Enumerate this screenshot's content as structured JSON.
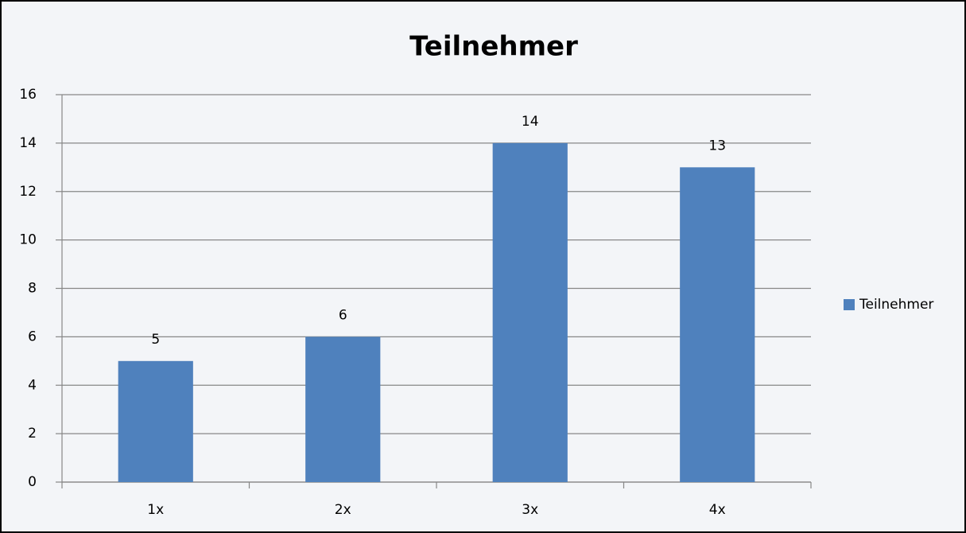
{
  "chart_data": {
    "type": "bar",
    "title": "Teilnehmer",
    "categories": [
      "1x",
      "2x",
      "3x",
      "4x"
    ],
    "series": [
      {
        "name": "Teilnehmer",
        "color": "#4f81bd",
        "values": [
          5,
          6,
          14,
          13
        ]
      }
    ],
    "ylim": [
      0,
      16
    ],
    "yticks": [
      0,
      2,
      4,
      6,
      8,
      10,
      12,
      14,
      16
    ],
    "grid": true,
    "legend": "right"
  }
}
